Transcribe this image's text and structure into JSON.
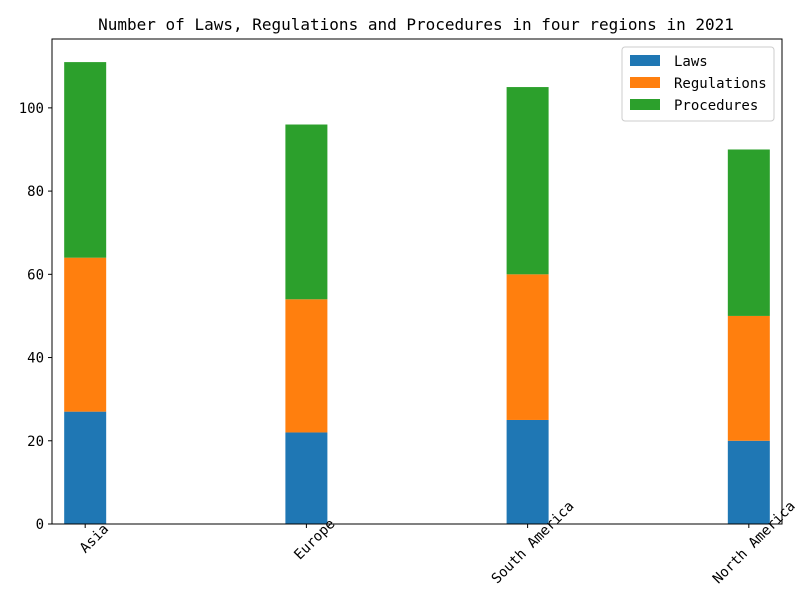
{
  "chart_data": {
    "type": "bar",
    "stacked": true,
    "title": "Number of Laws, Regulations and Procedures in four regions in 2021",
    "xlabel": "",
    "ylabel": "",
    "categories": [
      "Asia",
      "Europe",
      "South America",
      "North America"
    ],
    "series": [
      {
        "name": "Laws",
        "values": [
          27,
          22,
          25,
          20
        ],
        "color": "#1f77b4"
      },
      {
        "name": "Regulations",
        "values": [
          37,
          32,
          35,
          30
        ],
        "color": "#ff7f0e"
      },
      {
        "name": "Procedures",
        "values": [
          47,
          42,
          45,
          40
        ],
        "color": "#2ca02c"
      }
    ],
    "ylim": [
      0,
      116.55
    ],
    "yticks": [
      0,
      20,
      40,
      60,
      80,
      100
    ],
    "grid": false,
    "legend": "top-right"
  }
}
